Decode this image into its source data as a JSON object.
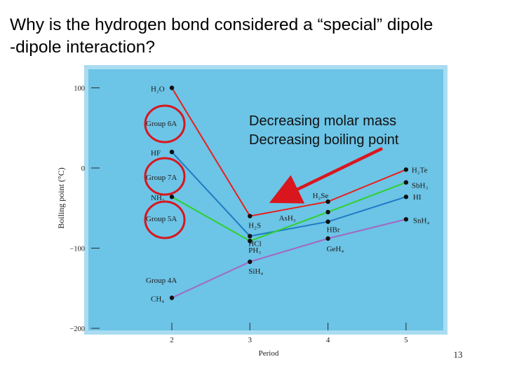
{
  "slide": {
    "title_line1": "Why is the hydrogen bond considered a “special” dipole",
    "title_line2": "-dipole interaction?",
    "page_number": "13"
  },
  "annotation": {
    "line1": "Decreasing molar mass",
    "line2": "Decreasing boiling point"
  },
  "colors": {
    "panel_bg": "#6cc4e6",
    "panel_border": "#a9dcf0",
    "group6": "#e8201c",
    "group7": "#1f7ac4",
    "group5": "#2fd12c",
    "group4": "#a467c4",
    "circle": "#d9161e",
    "arrow": "#d9161e"
  },
  "chart_data": {
    "type": "line",
    "xlabel": "Period",
    "ylabel": "Boiling point (°C)",
    "xlim": [
      1.1,
      5.6
    ],
    "ylim": [
      -200,
      110
    ],
    "x_ticks": [
      2,
      3,
      4,
      5
    ],
    "x_tick_labels": [
      "2",
      "3",
      "4",
      "5"
    ],
    "y_ticks": [
      100,
      0,
      -100,
      -200
    ],
    "y_tick_labels": [
      "100",
      "0",
      "−100",
      "−200"
    ],
    "series": [
      {
        "name": "Group 6A",
        "color_key": "group6",
        "x": [
          2,
          3,
          4,
          5
        ],
        "y": [
          100,
          -60,
          -42,
          -2
        ],
        "labels": [
          "H₂O",
          "H₂S",
          "H₂Se",
          "H₂Te"
        ]
      },
      {
        "name": "Group 7A",
        "color_key": "group7",
        "x": [
          2,
          3,
          4,
          5
        ],
        "y": [
          20,
          -85,
          -67,
          -36
        ],
        "labels": [
          "HF",
          "HCl",
          "HBr",
          "HI"
        ]
      },
      {
        "name": "Group 5A",
        "color_key": "group5",
        "x": [
          2,
          3,
          4,
          5
        ],
        "y": [
          -36,
          -91,
          -55,
          -18
        ],
        "labels": [
          "NH₃",
          "PH₃",
          "AsH₃",
          "SbH₃"
        ]
      },
      {
        "name": "Group 4A",
        "color_key": "group4",
        "x": [
          2,
          3,
          4,
          5
        ],
        "y": [
          -162,
          -117,
          -88,
          -64
        ],
        "labels": [
          "CH₄",
          "SiH₄",
          "GeH₄",
          "SnH₄"
        ]
      }
    ]
  }
}
